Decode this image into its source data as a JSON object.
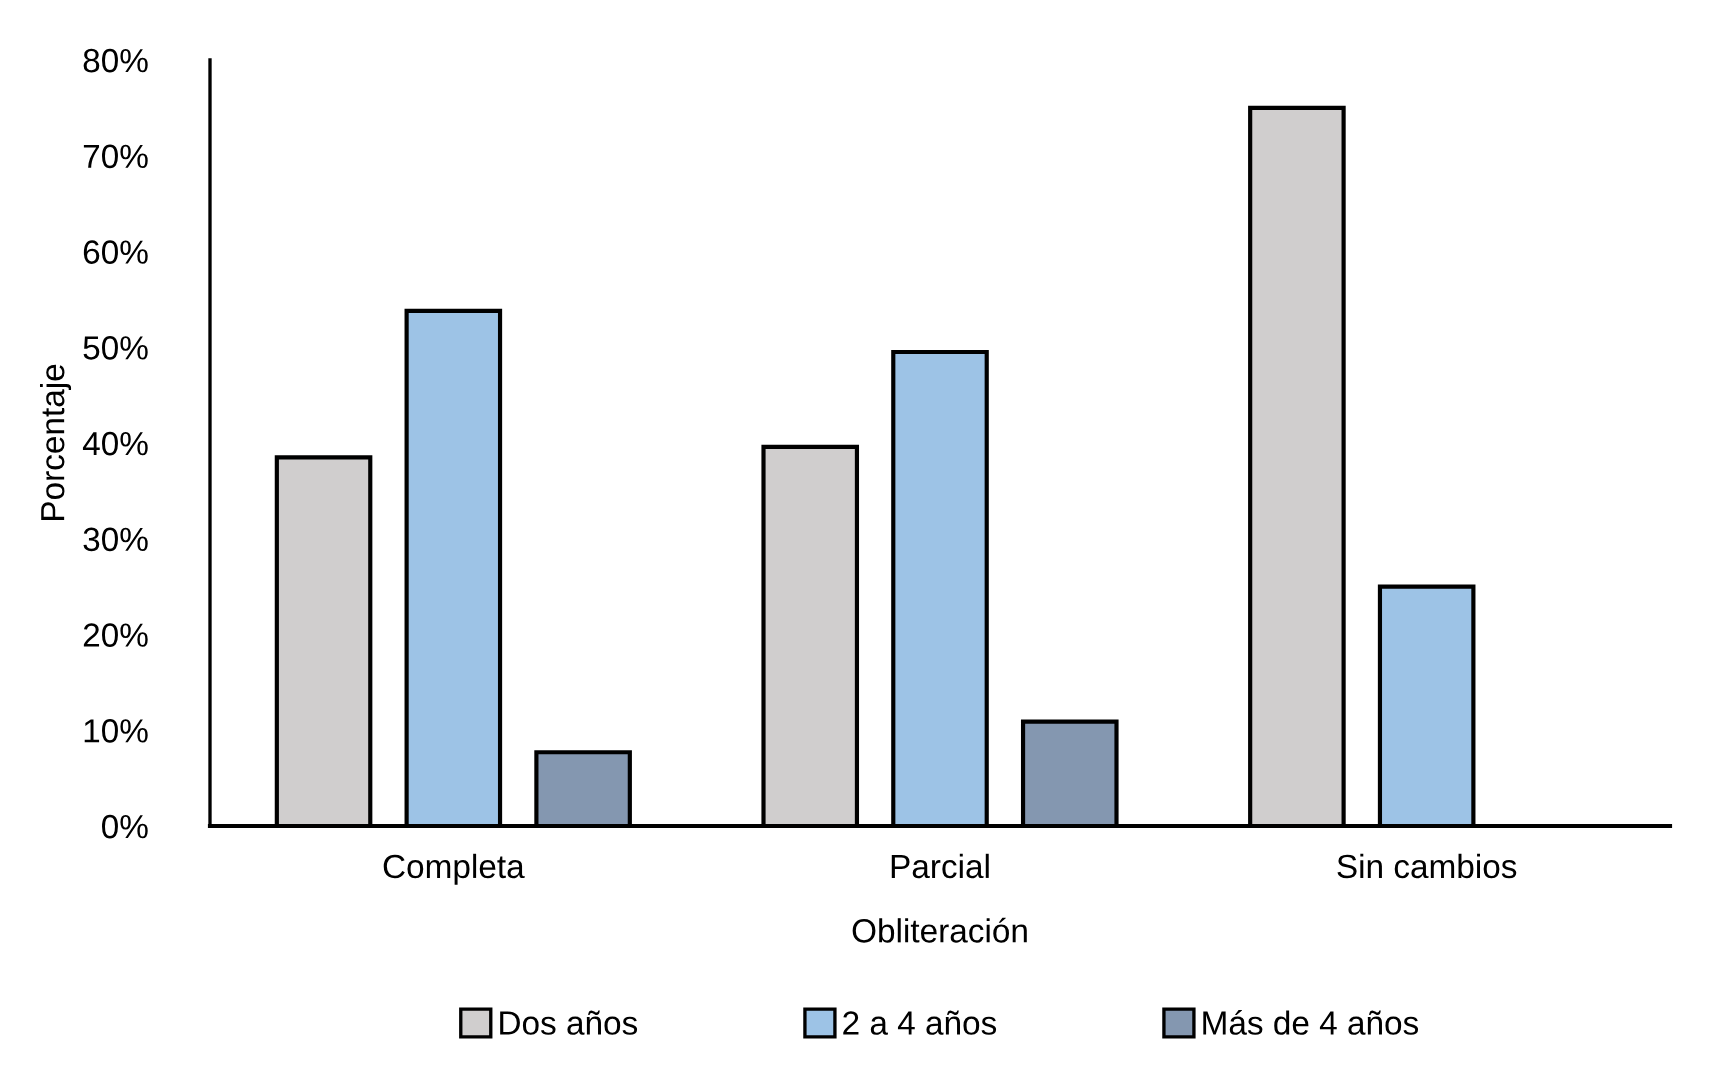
{
  "chart_data": {
    "type": "bar",
    "xlabel": "Obliteración",
    "ylabel": "Porcentaje",
    "categories": [
      "Completa",
      "Parcial",
      "Sin cambios"
    ],
    "series": [
      {
        "name": "Dos años",
        "color": "#d0cece",
        "values": [
          38.5,
          39.6,
          75
        ]
      },
      {
        "name": "2 a 4 años",
        "color": "#9dc3e6",
        "values": [
          53.8,
          49.5,
          25
        ]
      },
      {
        "name": "Más de 4 años",
        "color": "#8497b0",
        "values": [
          7.7,
          10.9,
          null
        ]
      }
    ],
    "ylim": [
      0,
      80
    ],
    "yticks": [
      {
        "value": 0,
        "label": "0%"
      },
      {
        "value": 10,
        "label": "10%"
      },
      {
        "value": 20,
        "label": "20%"
      },
      {
        "value": 30,
        "label": "30%"
      },
      {
        "value": 40,
        "label": "40%"
      },
      {
        "value": 50,
        "label": "50%"
      },
      {
        "value": 60,
        "label": "60%"
      },
      {
        "value": 70,
        "label": "70%"
      },
      {
        "value": 80,
        "label": "80%"
      }
    ],
    "grid": false,
    "legend": "bottom"
  }
}
